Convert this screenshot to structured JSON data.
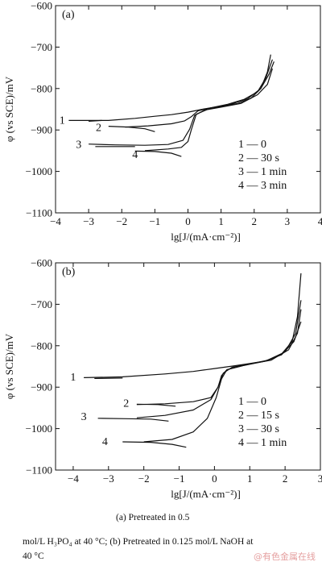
{
  "chart_data": [
    {
      "panel_label": "(a)",
      "type": "line",
      "xlabel": "lg[J/(mA·cm⁻²)]",
      "ylabel": "φ (vs SCE)/mV",
      "xlim": [
        -4,
        4
      ],
      "ylim": [
        -1100,
        -600
      ],
      "x_ticks": [
        "−4",
        "−3",
        "−2",
        "−1",
        "0",
        "1",
        "2",
        "3",
        "4"
      ],
      "y_ticks": [
        "−600",
        "−700",
        "−800",
        "−900",
        "−1000",
        "−1100"
      ],
      "legend": [
        "1 — 0",
        "2 — 30 s",
        "3 — 1 min",
        "4 — 3 min"
      ],
      "series": [
        {
          "name": "1",
          "annotation_point": [
            -3.8,
            -875
          ],
          "segments": [
            [
              [
                -3.6,
                -877
              ],
              [
                -2.4,
                -877
              ],
              [
                -1.6,
                -872
              ],
              [
                -1.0,
                -867
              ],
              [
                -0.5,
                -863
              ],
              [
                0,
                -857
              ],
              [
                0.5,
                -849
              ],
              [
                1.0,
                -843
              ],
              [
                1.5,
                -836
              ],
              [
                1.9,
                -824
              ],
              [
                2.2,
                -800
              ],
              [
                2.4,
                -760
              ],
              [
                2.5,
                -718
              ]
            ],
            [
              [
                -3.0,
                -879
              ],
              [
                -2.6,
                -877
              ]
            ]
          ]
        },
        {
          "name": "2",
          "annotation_point": [
            -2.7,
            -893
          ],
          "segments": [
            [
              [
                -2.4,
                -891
              ],
              [
                -1.8,
                -893
              ],
              [
                -1.3,
                -897
              ],
              [
                -1.0,
                -904
              ]
            ],
            [
              [
                -1.9,
                -893
              ],
              [
                -1.2,
                -890
              ],
              [
                -0.5,
                -885
              ],
              [
                -0.1,
                -878
              ],
              [
                0.1,
                -868
              ],
              [
                0.3,
                -854
              ],
              [
                0.6,
                -848
              ],
              [
                1.2,
                -838
              ],
              [
                1.7,
                -826
              ],
              [
                2.1,
                -808
              ],
              [
                2.35,
                -775
              ],
              [
                2.55,
                -730
              ]
            ]
          ]
        },
        {
          "name": "3",
          "annotation_point": [
            -3.3,
            -934
          ],
          "segments": [
            [
              [
                -3.0,
                -934
              ],
              [
                -2.2,
                -936
              ],
              [
                -1.3,
                -937
              ],
              [
                -0.6,
                -935
              ],
              [
                -0.15,
                -925
              ],
              [
                0.05,
                -898
              ],
              [
                0.2,
                -865
              ],
              [
                0.5,
                -852
              ],
              [
                1.0,
                -845
              ],
              [
                1.6,
                -836
              ],
              [
                2.1,
                -815
              ],
              [
                2.4,
                -790
              ],
              [
                2.55,
                -752
              ]
            ],
            [
              [
                -2.8,
                -940
              ],
              [
                -2.2,
                -940
              ],
              [
                -1.6,
                -940
              ]
            ]
          ]
        },
        {
          "name": "4",
          "annotation_point": [
            -1.6,
            -958
          ],
          "segments": [
            [
              [
                -1.6,
                -951
              ],
              [
                -1.0,
                -952
              ],
              [
                -0.5,
                -956
              ],
              [
                -0.2,
                -964
              ]
            ],
            [
              [
                -1.3,
                -950
              ],
              [
                -0.6,
                -946
              ],
              [
                -0.2,
                -942
              ],
              [
                0.0,
                -928
              ],
              [
                0.1,
                -900
              ],
              [
                0.25,
                -862
              ],
              [
                0.6,
                -850
              ],
              [
                1.2,
                -840
              ],
              [
                1.8,
                -825
              ],
              [
                2.2,
                -800
              ],
              [
                2.45,
                -765
              ],
              [
                2.6,
                -735
              ]
            ]
          ]
        }
      ]
    },
    {
      "panel_label": "(b)",
      "type": "line",
      "xlabel": "lg[J/(mA·cm⁻²)]",
      "ylabel": "φ (vs SCE)/mV",
      "xlim": [
        -4.5,
        3
      ],
      "ylim": [
        -1100,
        -600
      ],
      "x_ticks": [
        "−4",
        "−3",
        "−2",
        "−1",
        "0",
        "1",
        "2",
        "3"
      ],
      "y_ticks": [
        "−600",
        "−700",
        "−800",
        "−900",
        "−1000",
        "−1100"
      ],
      "legend": [
        "1 — 0",
        "2 — 15 s",
        "3 — 30 s",
        "4 — 1 min"
      ],
      "series": [
        {
          "name": "1",
          "annotation_point": [
            -4.0,
            -874
          ],
          "segments": [
            [
              [
                -3.7,
                -877
              ],
              [
                -2.6,
                -875
              ],
              [
                -1.4,
                -868
              ],
              [
                -0.6,
                -862
              ],
              [
                0,
                -855
              ],
              [
                0.6,
                -848
              ],
              [
                1.0,
                -843
              ],
              [
                1.5,
                -836
              ],
              [
                1.9,
                -820
              ],
              [
                2.2,
                -790
              ],
              [
                2.35,
                -730
              ],
              [
                2.45,
                -625
              ]
            ],
            [
              [
                -3.4,
                -879
              ],
              [
                -2.6,
                -878
              ]
            ]
          ]
        },
        {
          "name": "2",
          "annotation_point": [
            -2.5,
            -938
          ],
          "segments": [
            [
              [
                -2.2,
                -941
              ],
              [
                -1.6,
                -942
              ],
              [
                -1.1,
                -946
              ]
            ],
            [
              [
                -2.2,
                -942
              ],
              [
                -1.4,
                -940
              ],
              [
                -0.6,
                -935
              ],
              [
                -0.1,
                -925
              ],
              [
                0.1,
                -900
              ],
              [
                0.2,
                -872
              ],
              [
                0.35,
                -858
              ],
              [
                0.8,
                -848
              ],
              [
                1.5,
                -835
              ],
              [
                2.0,
                -815
              ],
              [
                2.3,
                -770
              ],
              [
                2.45,
                -690
              ]
            ]
          ]
        },
        {
          "name": "3",
          "annotation_point": [
            -3.7,
            -970
          ],
          "segments": [
            [
              [
                -3.3,
                -975
              ],
              [
                -2.5,
                -976
              ],
              [
                -1.8,
                -977
              ],
              [
                -1.3,
                -982
              ]
            ],
            [
              [
                -2.2,
                -974
              ],
              [
                -1.4,
                -968
              ],
              [
                -0.6,
                -955
              ],
              [
                -0.1,
                -930
              ],
              [
                0.1,
                -900
              ],
              [
                0.25,
                -866
              ],
              [
                0.5,
                -852
              ],
              [
                1.0,
                -844
              ],
              [
                1.6,
                -835
              ],
              [
                2.1,
                -810
              ],
              [
                2.35,
                -770
              ],
              [
                2.45,
                -712
              ]
            ]
          ]
        },
        {
          "name": "4",
          "annotation_point": [
            -3.1,
            -1030
          ],
          "segments": [
            [
              [
                -2.6,
                -1032
              ],
              [
                -1.8,
                -1033
              ],
              [
                -1.2,
                -1038
              ],
              [
                -0.8,
                -1045
              ]
            ],
            [
              [
                -2.0,
                -1032
              ],
              [
                -1.2,
                -1026
              ],
              [
                -0.6,
                -1008
              ],
              [
                -0.2,
                -975
              ],
              [
                0.05,
                -925
              ],
              [
                0.2,
                -880
              ],
              [
                0.35,
                -858
              ],
              [
                0.8,
                -848
              ],
              [
                1.4,
                -838
              ],
              [
                1.9,
                -822
              ],
              [
                2.25,
                -790
              ],
              [
                2.45,
                -742
              ]
            ]
          ]
        }
      ]
    }
  ],
  "caption": {
    "line1": "(a) Pretreated in 0.5",
    "line2": "mol/L H₃PO₄ at 40 °C; (b) Pretreated in 0.125 mol/L NaOH at",
    "line3": "40 °C"
  },
  "watermark": "@有色金属在线"
}
